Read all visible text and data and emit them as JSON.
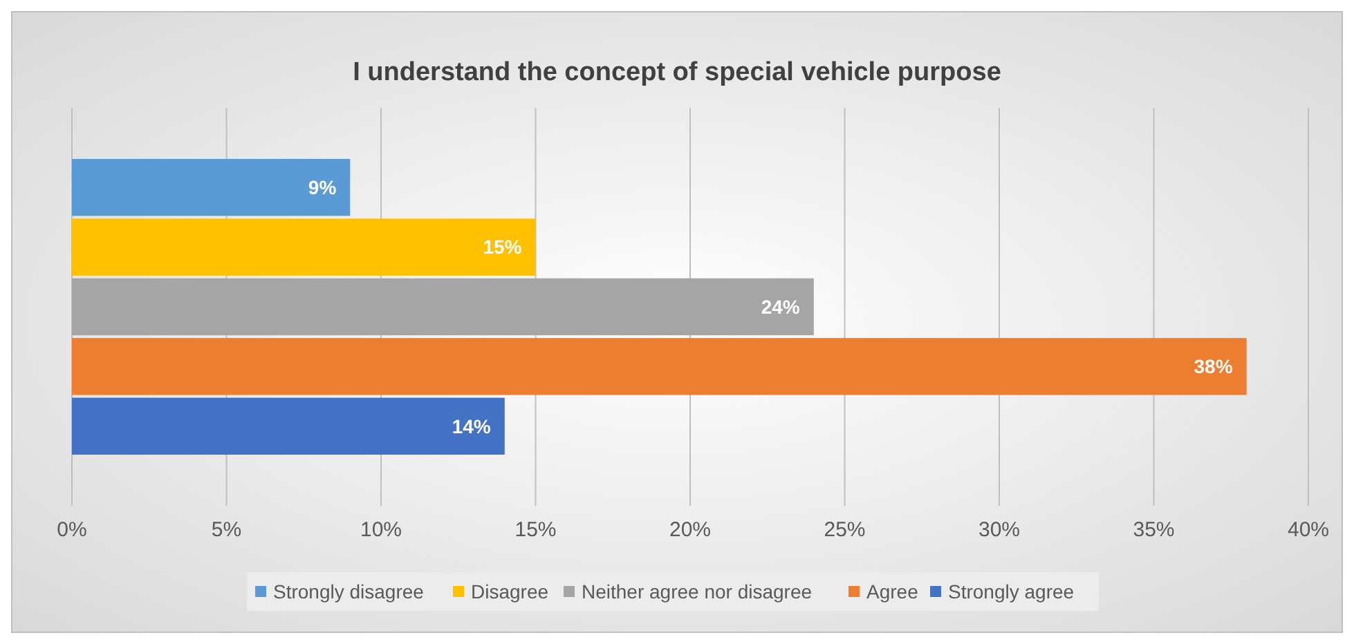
{
  "chart_data": {
    "type": "bar",
    "orientation": "horizontal",
    "title": "I understand the concept of special vehicle purpose",
    "categories": [
      null
    ],
    "series": [
      {
        "name": "Strongly disagree",
        "color": "#5b9bd5",
        "values": [
          9
        ],
        "value_labels": [
          "9%"
        ]
      },
      {
        "name": "Disagree",
        "color": "#ffc000",
        "values": [
          15
        ],
        "value_labels": [
          "15%"
        ]
      },
      {
        "name": "Neither agree nor disagree",
        "color": "#a5a5a5",
        "values": [
          24
        ],
        "value_labels": [
          "24%"
        ]
      },
      {
        "name": "Agree",
        "color": "#ed7d31",
        "values": [
          38
        ],
        "value_labels": [
          "38%"
        ]
      },
      {
        "name": "Strongly agree",
        "color": "#4472c4",
        "values": [
          14
        ],
        "value_labels": [
          "14%"
        ]
      }
    ],
    "xlim": [
      0,
      40
    ],
    "xticks": [
      {
        "value": 0,
        "label": "0%"
      },
      {
        "value": 5,
        "label": "5%"
      },
      {
        "value": 10,
        "label": "10%"
      },
      {
        "value": 15,
        "label": "15%"
      },
      {
        "value": 20,
        "label": "20%"
      },
      {
        "value": 25,
        "label": "25%"
      },
      {
        "value": 30,
        "label": "30%"
      },
      {
        "value": 35,
        "label": "35%"
      },
      {
        "value": 40,
        "label": "40%"
      }
    ],
    "grid": "x",
    "legend": "bottom"
  }
}
